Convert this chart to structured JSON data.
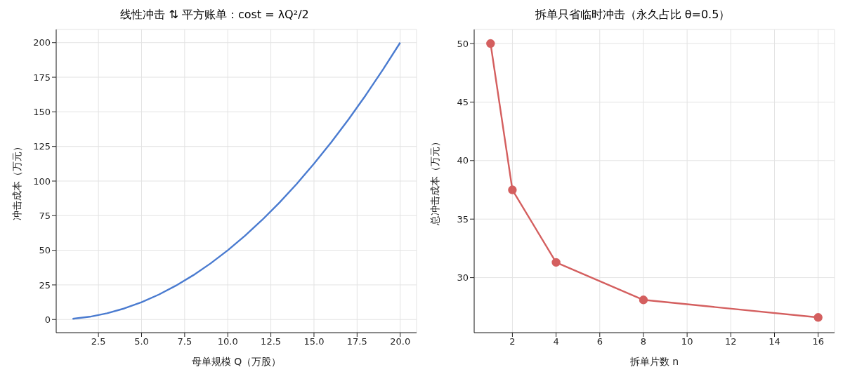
{
  "chart_data": [
    {
      "type": "line",
      "title": "线性冲击 ⇅ 平方账单：cost = λQ²/2",
      "xlabel": "母单规模 Q（万股）",
      "ylabel": "冲击成本（万元）",
      "x": [
        1,
        2,
        3,
        4,
        5,
        6,
        7,
        8,
        9,
        10,
        11,
        12,
        13,
        14,
        15,
        16,
        17,
        18,
        19,
        20
      ],
      "series": [
        {
          "color": "#4a7bd0",
          "values": [
            0.5,
            2,
            4.5,
            8,
            12.5,
            18,
            24.5,
            32,
            40.5,
            50,
            60.5,
            72,
            84.5,
            98,
            112.5,
            128,
            144.5,
            162,
            180.5,
            200
          ]
        }
      ],
      "xlim": [
        0.05,
        20.95
      ],
      "xticks": [
        {
          "value": 2.5,
          "label": "2.5"
        },
        {
          "value": 5,
          "label": "5.0"
        },
        {
          "value": 7.5,
          "label": "7.5"
        },
        {
          "value": 10,
          "label": "10.0"
        },
        {
          "value": 12.5,
          "label": "12.5"
        },
        {
          "value": 15,
          "label": "15.0"
        },
        {
          "value": 17.5,
          "label": "17.5"
        },
        {
          "value": 20,
          "label": "20.0"
        }
      ],
      "ylim": [
        -9.5,
        209.5
      ],
      "yticks": [
        0,
        25,
        50,
        75,
        100,
        125,
        150,
        175,
        200
      ],
      "grid": true,
      "marker": "none",
      "line_style": "solid"
    },
    {
      "type": "line",
      "title": "拆单只省临时冲击（永久占比 θ=0.5）",
      "xlabel": "拆单片数 n",
      "ylabel": "总冲击成本（万元）",
      "x": [
        1,
        2,
        4,
        8,
        16
      ],
      "series": [
        {
          "color": "#d45f5f",
          "values": [
            50,
            37.5,
            31.3,
            28.1,
            26.6
          ]
        }
      ],
      "xlim": [
        0.25,
        16.75
      ],
      "xticks": [
        2,
        4,
        6,
        8,
        10,
        12,
        14,
        16
      ],
      "ylim": [
        25.3,
        51.2
      ],
      "yticks": [
        30,
        35,
        40,
        45,
        50
      ],
      "grid": true,
      "marker": "circle",
      "line_style": "solid"
    }
  ]
}
